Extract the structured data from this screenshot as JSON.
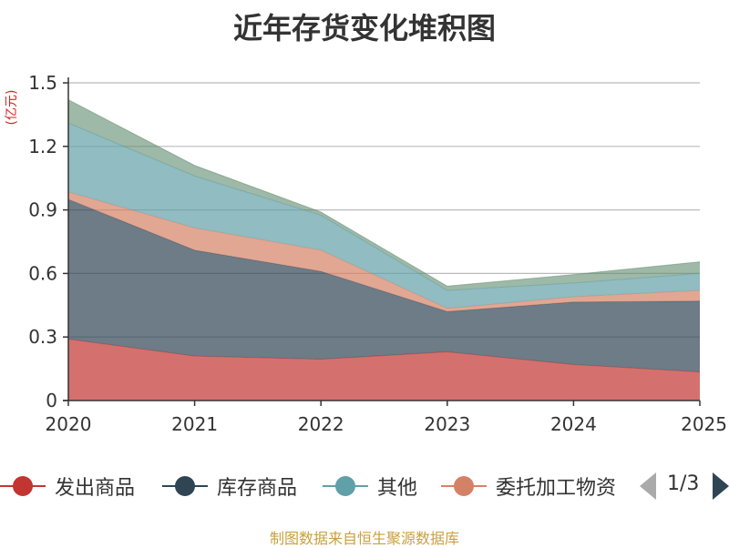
{
  "colors": {
    "发出商品": "#c23531",
    "库存商品": "#2f4554",
    "其他": "#61a0a8",
    "委托加工物资": "#d48265",
    "top": "#5e8a6c"
  },
  "chart_data": {
    "type": "area",
    "title": "近年存货变化堆积图",
    "unit_label": "(亿元)",
    "stacked": true,
    "x": [
      "2020",
      "2021",
      "2022",
      "2023",
      "2024",
      "2025"
    ],
    "ylim": [
      0,
      1.5
    ],
    "yticks": [
      "0",
      "0.3",
      "0.6",
      "0.9",
      "1.2",
      "1.5"
    ],
    "grid": true,
    "series": [
      {
        "name": "发出商品",
        "values": [
          0.29,
          0.21,
          0.195,
          0.23,
          0.17,
          0.135
        ]
      },
      {
        "name": "库存商品",
        "values": [
          0.66,
          0.5,
          0.415,
          0.19,
          0.295,
          0.335
        ]
      },
      {
        "name": "委托加工物资",
        "values": [
          0.035,
          0.105,
          0.1,
          0.015,
          0.025,
          0.05
        ]
      },
      {
        "name": "其他",
        "values": [
          0.325,
          0.245,
          0.165,
          0.085,
          0.065,
          0.08
        ]
      },
      {
        "name": "",
        "values": [
          0.11,
          0.05,
          0.015,
          0.02,
          0.04,
          0.055
        ]
      }
    ]
  },
  "legend": {
    "items": [
      "发出商品",
      "库存商品",
      "其他",
      "委托加工物资"
    ],
    "page": "1/3"
  },
  "footer": {
    "source": "制图数据来自恒生聚源数据库"
  }
}
